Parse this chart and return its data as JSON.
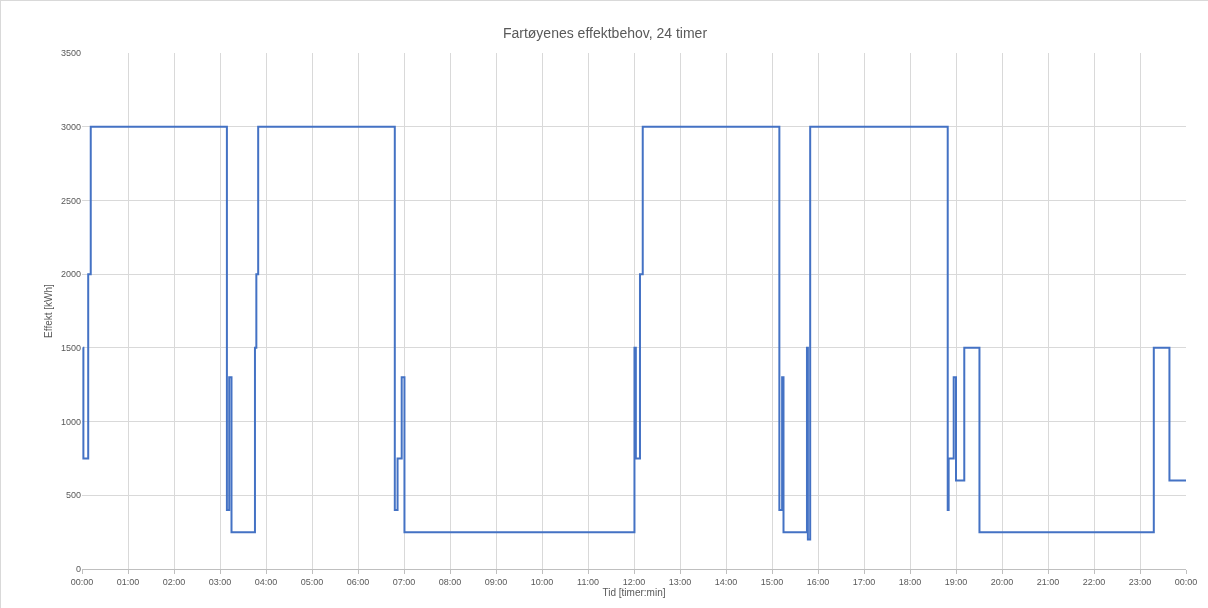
{
  "chart_data": {
    "type": "step",
    "title": "Fartøyenes effektbehov, 24 timer",
    "xlabel": "Tid [timer:min]",
    "ylabel": "Effekt [kWh]",
    "x": [
      0.02,
      0.03,
      0.135,
      0.19,
      3.15,
      3.2,
      3.25,
      3.76,
      3.79,
      3.83,
      6.8,
      6.86,
      6.95,
      7.01,
      12.01,
      12.04,
      12.13,
      12.19,
      15.16,
      15.22,
      15.25,
      15.76,
      15.78,
      15.83,
      18.82,
      18.84,
      18.95,
      19.0,
      19.18,
      19.51,
      23.3,
      23.64,
      24
    ],
    "series": [
      {
        "color": "#4472c4",
        "values": [
          1500,
          750,
          2000,
          3000,
          400,
          1300,
          250,
          1500,
          2000,
          3000,
          400,
          750,
          1300,
          250,
          1500,
          750,
          2000,
          3000,
          400,
          1300,
          250,
          1500,
          200,
          3000,
          400,
          750,
          1300,
          600,
          1500,
          250,
          1500,
          600,
          600
        ]
      }
    ],
    "xlim": [
      0,
      24
    ],
    "xticks": [
      {
        "value": 0,
        "label": "00:00"
      },
      {
        "value": 1,
        "label": "01:00"
      },
      {
        "value": 2,
        "label": "02:00"
      },
      {
        "value": 3,
        "label": "03:00"
      },
      {
        "value": 4,
        "label": "04:00"
      },
      {
        "value": 5,
        "label": "05:00"
      },
      {
        "value": 6,
        "label": "06:00"
      },
      {
        "value": 7,
        "label": "07:00"
      },
      {
        "value": 8,
        "label": "08:00"
      },
      {
        "value": 9,
        "label": "09:00"
      },
      {
        "value": 10,
        "label": "10:00"
      },
      {
        "value": 11,
        "label": "11:00"
      },
      {
        "value": 12,
        "label": "12:00"
      },
      {
        "value": 13,
        "label": "13:00"
      },
      {
        "value": 14,
        "label": "14:00"
      },
      {
        "value": 15,
        "label": "15:00"
      },
      {
        "value": 16,
        "label": "16:00"
      },
      {
        "value": 17,
        "label": "17:00"
      },
      {
        "value": 18,
        "label": "18:00"
      },
      {
        "value": 19,
        "label": "19:00"
      },
      {
        "value": 20,
        "label": "20:00"
      },
      {
        "value": 21,
        "label": "21:00"
      },
      {
        "value": 22,
        "label": "22:00"
      },
      {
        "value": 23,
        "label": "23:00"
      },
      {
        "value": 24,
        "label": "00:00"
      }
    ],
    "ylim": [
      0,
      3500
    ],
    "yticks": [
      0,
      500,
      1000,
      1500,
      2000,
      2500,
      3000,
      3500
    ],
    "grid": true,
    "line_style": "solid",
    "marker": "none"
  }
}
